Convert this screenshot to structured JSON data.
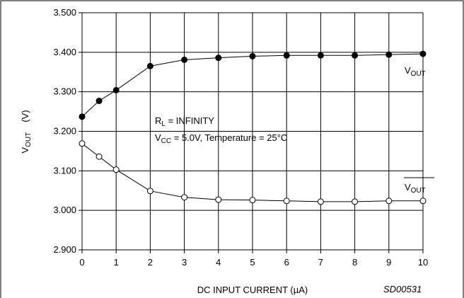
{
  "chart_data": {
    "type": "line",
    "title": "",
    "xlabel": "DC INPUT CURRENT (µA)",
    "ylabel": {
      "main": "V",
      "sub": "OUT",
      "unit": "(V)"
    },
    "xlim": [
      0,
      10
    ],
    "ylim": [
      2.9,
      3.5
    ],
    "xticks": [
      0,
      1,
      2,
      3,
      4,
      5,
      6,
      7,
      8,
      9,
      10
    ],
    "yticks": [
      "2.900",
      "3.000",
      "3.100",
      "3.200",
      "3.300",
      "3.400",
      "3.500"
    ],
    "grid": true,
    "series": [
      {
        "name": "VOUT",
        "label_main": "V",
        "label_sub": "OUT",
        "overline": false,
        "marker": "filled-circle",
        "x": [
          0,
          0.5,
          1,
          2,
          3,
          4,
          5,
          6,
          7,
          8,
          9,
          10
        ],
        "y": [
          3.237,
          3.277,
          3.304,
          3.365,
          3.381,
          3.386,
          3.39,
          3.392,
          3.392,
          3.392,
          3.394,
          3.396
        ]
      },
      {
        "name": "VOUT (inverted)",
        "label_main": "V",
        "label_sub": "OUT",
        "overline": true,
        "marker": "open-circle",
        "x": [
          0,
          0.5,
          1,
          2,
          3,
          4,
          5,
          6,
          7,
          8,
          9,
          10
        ],
        "y": [
          3.169,
          3.136,
          3.103,
          3.049,
          3.033,
          3.027,
          3.026,
          3.024,
          3.022,
          3.022,
          3.024,
          3.024
        ]
      }
    ],
    "annotations": {
      "line1_main": "R",
      "line1_sub": "L",
      "line1_rest": " = INFINITY",
      "line2_main": "V",
      "line2_sub": "CC",
      "line2_rest": " = 5.0V, Temperature = 25°C"
    },
    "code": "SD00531"
  }
}
